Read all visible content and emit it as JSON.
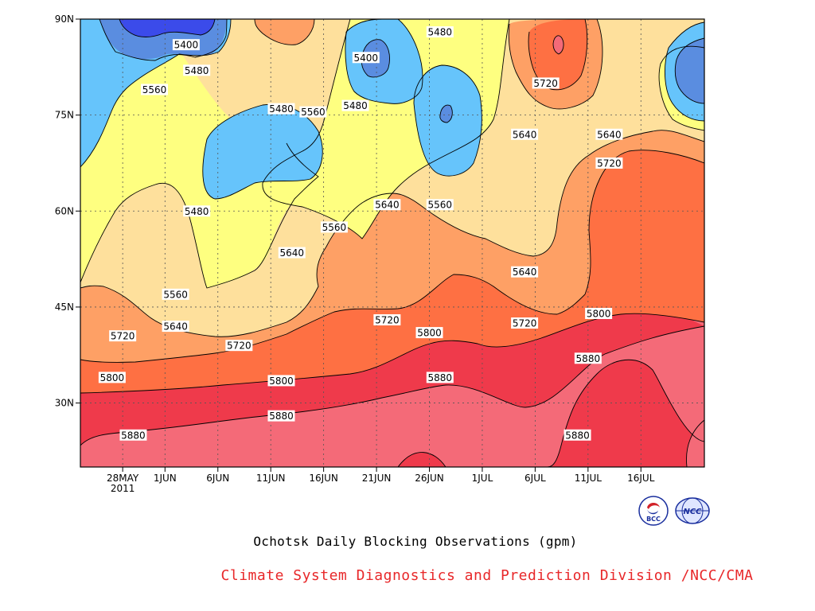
{
  "chart_data": {
    "type": "heatmap",
    "title": "Ochotsk Daily Blocking Observations (gpm)",
    "credit": "Climate System Diagnostics and Prediction Division /NCC/CMA",
    "x_ticks": [
      "28MAY",
      "1JUN",
      "6JUN",
      "11JUN",
      "16JUN",
      "21JUN",
      "26JUN",
      "1JUL",
      "6JUL",
      "11JUL",
      "16JUL"
    ],
    "x_year_label": "2011",
    "x_range": [
      "2011-05-24",
      "2011-07-22"
    ],
    "y_ticks": [
      "30N",
      "45N",
      "60N",
      "75N",
      "90N"
    ],
    "y_range": [
      20,
      90
    ],
    "contour_levels": [
      5400,
      5480,
      5560,
      5640,
      5720,
      5800,
      5880
    ],
    "fill_colors": {
      "below_5400": "#3b4bea",
      "5400_5480": "#5a8de0",
      "5480_5560": "#66c4fb",
      "5560_5640": "#feff80",
      "5640_5720": "#fee09c",
      "5720_5800": "#fea065",
      "5800_5880": "#fe7043",
      "5880_5960": "#f46a78",
      "above_5960": "#ef3a4b"
    },
    "contour_labels": [
      {
        "date": "2011-06-03",
        "lat": 86,
        "value": "5400"
      },
      {
        "date": "2011-06-04",
        "lat": 82,
        "value": "5480"
      },
      {
        "date": "2011-05-31",
        "lat": 79,
        "value": "5560"
      },
      {
        "date": "2011-06-12",
        "lat": 76,
        "value": "5480"
      },
      {
        "date": "2011-06-15",
        "lat": 75.5,
        "value": "5560"
      },
      {
        "date": "2011-06-20",
        "lat": 84,
        "value": "5400"
      },
      {
        "date": "2011-06-19",
        "lat": 76.5,
        "value": "5480"
      },
      {
        "date": "2011-06-27",
        "lat": 88,
        "value": "5480"
      },
      {
        "date": "2011-07-07",
        "lat": 80,
        "value": "5720"
      },
      {
        "date": "2011-07-05",
        "lat": 72,
        "value": "5640"
      },
      {
        "date": "2011-07-13",
        "lat": 72,
        "value": "5640"
      },
      {
        "date": "2011-07-13",
        "lat": 67.5,
        "value": "5720"
      },
      {
        "date": "2011-06-04",
        "lat": 60,
        "value": "5480"
      },
      {
        "date": "2011-06-22",
        "lat": 61,
        "value": "5640"
      },
      {
        "date": "2011-06-27",
        "lat": 61,
        "value": "5560"
      },
      {
        "date": "2011-06-17",
        "lat": 57.5,
        "value": "5560"
      },
      {
        "date": "2011-06-13",
        "lat": 53.5,
        "value": "5640"
      },
      {
        "date": "2011-07-05",
        "lat": 50.5,
        "value": "5640"
      },
      {
        "date": "2011-06-02",
        "lat": 47,
        "value": "5560"
      },
      {
        "date": "2011-06-02",
        "lat": 42,
        "value": "5640"
      },
      {
        "date": "2011-05-28",
        "lat": 40.5,
        "value": "5720"
      },
      {
        "date": "2011-06-08",
        "lat": 39,
        "value": "5720"
      },
      {
        "date": "2011-06-22",
        "lat": 43,
        "value": "5720"
      },
      {
        "date": "2011-06-26",
        "lat": 41,
        "value": "5800"
      },
      {
        "date": "2011-07-05",
        "lat": 42.5,
        "value": "5720"
      },
      {
        "date": "2011-07-12",
        "lat": 44,
        "value": "5800"
      },
      {
        "date": "2011-05-27",
        "lat": 34,
        "value": "5800"
      },
      {
        "date": "2011-06-12",
        "lat": 33.5,
        "value": "5800"
      },
      {
        "date": "2011-06-27",
        "lat": 34,
        "value": "5880"
      },
      {
        "date": "2011-07-11",
        "lat": 37,
        "value": "5880"
      },
      {
        "date": "2011-05-29",
        "lat": 25,
        "value": "5880"
      },
      {
        "date": "2011-06-12",
        "lat": 28,
        "value": "5880"
      },
      {
        "date": "2011-07-10",
        "lat": 25,
        "value": "5880"
      }
    ],
    "grid": true,
    "grid_style": "dotted"
  },
  "logos": {
    "left": {
      "icon": "bcc-logo",
      "text": "BCC"
    },
    "right": {
      "icon": "ncc-logo",
      "text": "NCC"
    }
  }
}
